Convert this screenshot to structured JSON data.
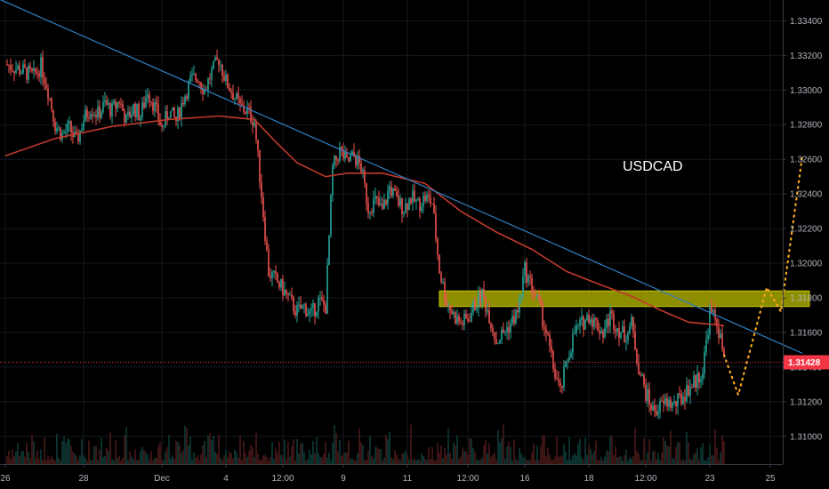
{
  "chart_data": {
    "type": "candlestick",
    "symbol_label": "USDCAD",
    "y_axis": {
      "min": 1.3084,
      "max": 1.3352,
      "ticks": [
        "1.33400",
        "1.33200",
        "1.33000",
        "1.32800",
        "1.32600",
        "1.32400",
        "1.32200",
        "1.32000",
        "1.31800",
        "1.31600",
        "1.31400",
        "1.31200",
        "1.31000"
      ],
      "tick_values": [
        1.334,
        1.332,
        1.33,
        1.328,
        1.326,
        1.324,
        1.322,
        1.32,
        1.318,
        1.316,
        1.314,
        1.312,
        1.31
      ]
    },
    "x_axis": {
      "ticks": [
        "26",
        "28",
        "Dec",
        "4",
        "12:00",
        "9",
        "11",
        "12:00",
        "16",
        "18",
        "12:00",
        "23",
        "25"
      ],
      "tick_index": [
        0,
        22,
        44,
        62,
        78,
        95,
        113,
        130,
        146,
        164,
        180,
        198,
        215
      ]
    },
    "last_price": {
      "label": "1.31428",
      "value": 1.31428,
      "color": "#f23645"
    },
    "colors": {
      "up": "#26a69a",
      "down": "#ef5350",
      "ma": "#c0392b",
      "trend": "#2f7fc1",
      "zone": "#c8c800",
      "projection": "#f5a623"
    },
    "price_path": [
      [
        0,
        1.3315
      ],
      [
        4,
        1.3312
      ],
      [
        8,
        1.3308
      ],
      [
        10,
        1.3314
      ],
      [
        12,
        1.33
      ],
      [
        14,
        1.328
      ],
      [
        16,
        1.3274
      ],
      [
        18,
        1.3278
      ],
      [
        20,
        1.327
      ],
      [
        22,
        1.3283
      ],
      [
        24,
        1.329
      ],
      [
        26,
        1.3286
      ],
      [
        28,
        1.3292
      ],
      [
        30,
        1.3288
      ],
      [
        32,
        1.3294
      ],
      [
        34,
        1.3282
      ],
      [
        36,
        1.329
      ],
      [
        38,
        1.3285
      ],
      [
        40,
        1.33
      ],
      [
        42,
        1.329
      ],
      [
        44,
        1.3278
      ],
      [
        46,
        1.3288
      ],
      [
        48,
        1.3282
      ],
      [
        50,
        1.3295
      ],
      [
        52,
        1.3305
      ],
      [
        54,
        1.3308
      ],
      [
        56,
        1.33
      ],
      [
        58,
        1.331
      ],
      [
        60,
        1.3318
      ],
      [
        62,
        1.3305
      ],
      [
        64,
        1.3298
      ],
      [
        66,
        1.329
      ],
      [
        68,
        1.3288
      ],
      [
        70,
        1.3282
      ],
      [
        72,
        1.324
      ],
      [
        74,
        1.3195
      ],
      [
        76,
        1.319
      ],
      [
        78,
        1.3185
      ],
      [
        80,
        1.3178
      ],
      [
        82,
        1.3172
      ],
      [
        84,
        1.3175
      ],
      [
        86,
        1.317
      ],
      [
        88,
        1.3178
      ],
      [
        90,
        1.3175
      ],
      [
        92,
        1.3255
      ],
      [
        94,
        1.3265
      ],
      [
        96,
        1.3258
      ],
      [
        98,
        1.3262
      ],
      [
        100,
        1.3255
      ],
      [
        102,
        1.3232
      ],
      [
        104,
        1.3236
      ],
      [
        106,
        1.323
      ],
      [
        108,
        1.3244
      ],
      [
        110,
        1.3236
      ],
      [
        112,
        1.3232
      ],
      [
        114,
        1.3238
      ],
      [
        116,
        1.3234
      ],
      [
        118,
        1.3238
      ],
      [
        120,
        1.3235
      ],
      [
        122,
        1.3196
      ],
      [
        124,
        1.3178
      ],
      [
        126,
        1.317
      ],
      [
        128,
        1.3165
      ],
      [
        130,
        1.3168
      ],
      [
        132,
        1.3176
      ],
      [
        134,
        1.3182
      ],
      [
        136,
        1.317
      ],
      [
        138,
        1.3155
      ],
      [
        140,
        1.316
      ],
      [
        142,
        1.3165
      ],
      [
        144,
        1.3172
      ],
      [
        146,
        1.3196
      ],
      [
        148,
        1.3186
      ],
      [
        150,
        1.3176
      ],
      [
        152,
        1.316
      ],
      [
        154,
        1.314
      ],
      [
        156,
        1.3125
      ],
      [
        158,
        1.3145
      ],
      [
        160,
        1.316
      ],
      [
        162,
        1.3165
      ],
      [
        164,
        1.317
      ],
      [
        166,
        1.3165
      ],
      [
        168,
        1.316
      ],
      [
        170,
        1.317
      ],
      [
        172,
        1.3163
      ],
      [
        174,
        1.3158
      ],
      [
        176,
        1.3165
      ],
      [
        178,
        1.314
      ],
      [
        180,
        1.3125
      ],
      [
        182,
        1.3115
      ],
      [
        184,
        1.3117
      ],
      [
        186,
        1.312
      ],
      [
        188,
        1.3118
      ],
      [
        190,
        1.3122
      ],
      [
        192,
        1.3128
      ],
      [
        194,
        1.3132
      ],
      [
        196,
        1.3138
      ],
      [
        198,
        1.3172
      ],
      [
        200,
        1.3166
      ],
      [
        202,
        1.3145
      ]
    ],
    "moving_average": [
      [
        0,
        1.3262
      ],
      [
        14,
        1.3272
      ],
      [
        30,
        1.3279
      ],
      [
        46,
        1.3283
      ],
      [
        60,
        1.3285
      ],
      [
        70,
        1.3283
      ],
      [
        76,
        1.327
      ],
      [
        82,
        1.3258
      ],
      [
        90,
        1.325
      ],
      [
        96,
        1.3252
      ],
      [
        106,
        1.3252
      ],
      [
        118,
        1.3246
      ],
      [
        128,
        1.323
      ],
      [
        138,
        1.3218
      ],
      [
        148,
        1.3208
      ],
      [
        158,
        1.3195
      ],
      [
        168,
        1.3187
      ],
      [
        176,
        1.3181
      ],
      [
        184,
        1.3173
      ],
      [
        192,
        1.3166
      ],
      [
        202,
        1.3164
      ]
    ],
    "trendline": [
      [
        -10,
        1.336
      ],
      [
        224,
        1.3148
      ]
    ],
    "resistance_zone": {
      "x_start": 122,
      "x_end": 226,
      "y_low": 1.3175,
      "y_high": 1.3184
    },
    "projection": [
      [
        202,
        1.3147
      ],
      [
        206,
        1.3124
      ],
      [
        214,
        1.3186
      ],
      [
        218,
        1.3172
      ],
      [
        224,
        1.3262
      ]
    ]
  }
}
